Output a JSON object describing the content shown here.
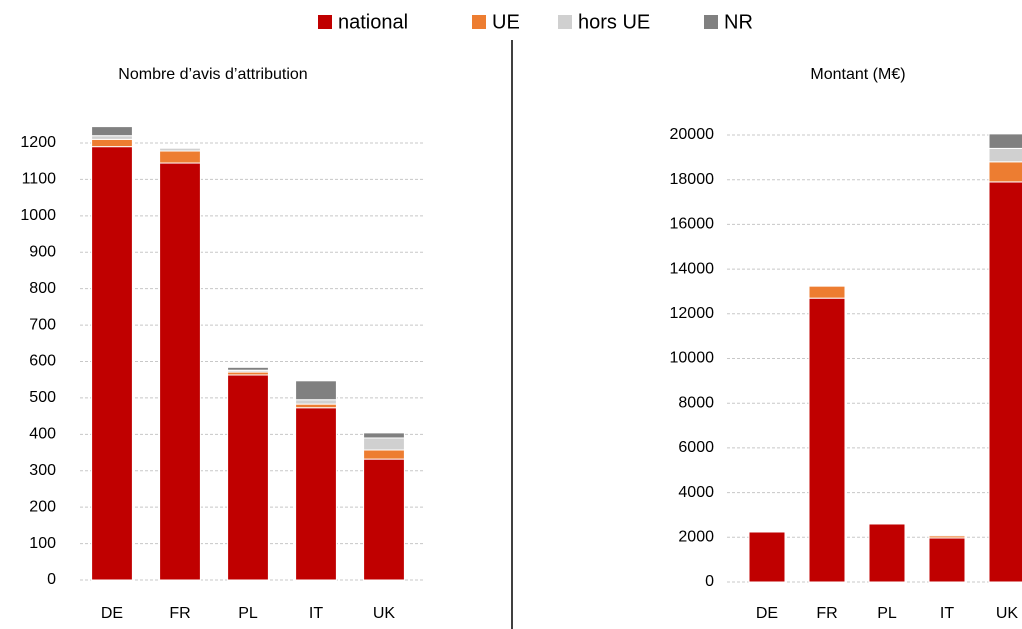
{
  "chart_data": [
    {
      "type": "bar",
      "stacked": true,
      "title": "Nombre d’avis d’attribution",
      "categories": [
        "DE",
        "FR",
        "PL",
        "IT",
        "UK"
      ],
      "series": [
        {
          "name": "national",
          "color": "#c00000",
          "values": [
            1190,
            1145,
            563,
            473,
            332
          ]
        },
        {
          "name": "UE",
          "color": "#ed7d31",
          "values": [
            20,
            33,
            8,
            10,
            25
          ]
        },
        {
          "name": "hors UE",
          "color": "#d0d0d0",
          "values": [
            10,
            8,
            5,
            12,
            33
          ]
        },
        {
          "name": "NR",
          "color": "#808080",
          "values": [
            25,
            2,
            8,
            52,
            14
          ]
        }
      ],
      "ylim": [
        0,
        1200
      ],
      "yticks": [
        0,
        100,
        200,
        300,
        400,
        500,
        600,
        700,
        800,
        900,
        1000,
        1100,
        1200
      ],
      "grid": true
    },
    {
      "type": "bar",
      "stacked": true,
      "title": "Montant (M€)",
      "categories": [
        "DE",
        "FR",
        "PL",
        "IT",
        "UK"
      ],
      "series": [
        {
          "color": "#c00000",
          "values": [
            2240,
            12700,
            2600,
            1970,
            17900
          ]
        },
        {
          "color": "#ed7d31",
          "values": [
            20,
            540,
            10,
            100,
            900
          ]
        },
        {
          "color": "#d0d0d0",
          "values": [
            50,
            20,
            5,
            50,
            600
          ]
        },
        {
          "color": "#808080",
          "values": [
            10,
            20,
            5,
            10,
            650
          ]
        }
      ],
      "ylim": [
        0,
        20000
      ],
      "yticks": [
        0,
        2000,
        4000,
        6000,
        8000,
        10000,
        12000,
        14000,
        16000,
        18000,
        20000
      ],
      "grid": true
    }
  ]
}
